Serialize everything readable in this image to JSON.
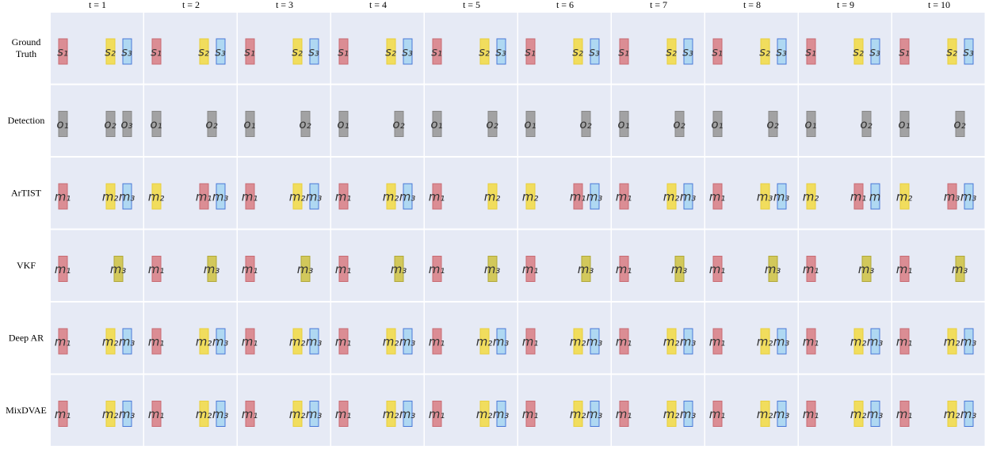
{
  "columns": [
    "t = 1",
    "t = 2",
    "t = 3",
    "t = 4",
    "t = 5",
    "t = 6",
    "t = 7",
    "t = 8",
    "t = 9",
    "t = 10"
  ],
  "palette": {
    "red": "#d9838a",
    "yellow": "#f2dc4c",
    "blue": "#a8d6f2",
    "gray": "#9a9a9a",
    "olive": "#cfc44a"
  },
  "rows": [
    {
      "label": [
        "Ground",
        "Truth"
      ],
      "cells": [
        [
          {
            "label": "s₁",
            "color": "red"
          },
          {
            "label": "s₂",
            "color": "yellow"
          },
          {
            "label": "s₃",
            "color": "blue"
          }
        ],
        [
          {
            "label": "s₁",
            "color": "red"
          },
          {
            "label": "s₂",
            "color": "yellow"
          },
          {
            "label": "s₃",
            "color": "blue"
          }
        ],
        [
          {
            "label": "s₁",
            "color": "red"
          },
          {
            "label": "s₂",
            "color": "yellow"
          },
          {
            "label": "s₃",
            "color": "blue"
          }
        ],
        [
          {
            "label": "s₁",
            "color": "red"
          },
          {
            "label": "s₂",
            "color": "yellow"
          },
          {
            "label": "s₃",
            "color": "blue"
          }
        ],
        [
          {
            "label": "s₁",
            "color": "red"
          },
          {
            "label": "s₂",
            "color": "yellow"
          },
          {
            "label": "s₃",
            "color": "blue"
          }
        ],
        [
          {
            "label": "s₁",
            "color": "red"
          },
          {
            "label": "s₂",
            "color": "yellow"
          },
          {
            "label": "s₃",
            "color": "blue"
          }
        ],
        [
          {
            "label": "s₁",
            "color": "red"
          },
          {
            "label": "s₂",
            "color": "yellow"
          },
          {
            "label": "s₃",
            "color": "blue"
          }
        ],
        [
          {
            "label": "s₁",
            "color": "red"
          },
          {
            "label": "s₂",
            "color": "yellow"
          },
          {
            "label": "s₃",
            "color": "blue"
          }
        ],
        [
          {
            "label": "s₁",
            "color": "red"
          },
          {
            "label": "s₂",
            "color": "yellow"
          },
          {
            "label": "s₃",
            "color": "blue"
          }
        ],
        [
          {
            "label": "s₁",
            "color": "red"
          },
          {
            "label": "s₂",
            "color": "yellow"
          },
          {
            "label": "s₃",
            "color": "blue"
          }
        ]
      ]
    },
    {
      "label": [
        "Detection"
      ],
      "cells": [
        [
          {
            "label": "o₁",
            "color": "gray"
          },
          {
            "label": "o₂",
            "color": "gray"
          },
          {
            "label": "o₃",
            "color": "gray"
          }
        ],
        [
          {
            "label": "o₁",
            "color": "gray"
          },
          {
            "label": "o₂",
            "color": "gray"
          }
        ],
        [
          {
            "label": "o₁",
            "color": "gray"
          },
          {
            "label": "o₂",
            "color": "gray"
          }
        ],
        [
          {
            "label": "o₁",
            "color": "gray"
          },
          {
            "label": "o₂",
            "color": "gray"
          }
        ],
        [
          {
            "label": "o₁",
            "color": "gray"
          },
          {
            "label": "o₂",
            "color": "gray"
          }
        ],
        [
          {
            "label": "o₁",
            "color": "gray"
          },
          {
            "label": "o₂",
            "color": "gray"
          }
        ],
        [
          {
            "label": "o₁",
            "color": "gray"
          },
          {
            "label": "o₂",
            "color": "gray"
          }
        ],
        [
          {
            "label": "o₁",
            "color": "gray"
          },
          {
            "label": "o₂",
            "color": "gray"
          }
        ],
        [
          {
            "label": "o₁",
            "color": "gray"
          },
          {
            "label": "o₂",
            "color": "gray"
          }
        ],
        [
          {
            "label": "o₁",
            "color": "gray"
          },
          {
            "label": "o₂",
            "color": "gray"
          }
        ]
      ]
    },
    {
      "label": [
        "ArTIST"
      ],
      "cells": [
        [
          {
            "label": "m₁",
            "color": "red"
          },
          {
            "label": "m₂",
            "color": "yellow"
          },
          {
            "label": "m₃",
            "color": "blue"
          }
        ],
        [
          {
            "label": "m₂",
            "color": "yellow"
          },
          {
            "label": "m₁",
            "color": "red"
          },
          {
            "label": "m₃",
            "color": "blue"
          }
        ],
        [
          {
            "label": "m₁",
            "color": "red"
          },
          {
            "label": "m₂",
            "color": "yellow"
          },
          {
            "label": "m₃",
            "color": "blue"
          }
        ],
        [
          {
            "label": "m₁",
            "color": "red"
          },
          {
            "label": "m₂",
            "color": "yellow"
          },
          {
            "label": "m₃",
            "color": "blue"
          }
        ],
        [
          {
            "label": "m₁",
            "color": "red"
          },
          {
            "label": "m₂",
            "color": "yellow"
          }
        ],
        [
          {
            "label": "m₂",
            "color": "yellow"
          },
          {
            "label": "m₁",
            "color": "red"
          },
          {
            "label": "m₃",
            "color": "blue"
          }
        ],
        [
          {
            "label": "m₁",
            "color": "red"
          },
          {
            "label": "m₂",
            "color": "yellow"
          },
          {
            "label": "m₃",
            "color": "blue"
          }
        ],
        [
          {
            "label": "m₁",
            "color": "red"
          },
          {
            "label": "m₃",
            "color": "yellow"
          },
          {
            "label": "m₃",
            "color": "blue"
          }
        ],
        [
          {
            "label": "m₂",
            "color": "yellow"
          },
          {
            "label": "m₁",
            "color": "red"
          },
          {
            "label": "m",
            "color": "blue"
          }
        ],
        [
          {
            "label": "m₂",
            "color": "yellow"
          },
          {
            "label": "m₃",
            "color": "red"
          },
          {
            "label": "m₃",
            "color": "blue"
          }
        ]
      ]
    },
    {
      "label": [
        "VKF"
      ],
      "cells": [
        [
          {
            "label": "m₁",
            "color": "red"
          },
          {
            "label": "m₃",
            "color": "olive"
          }
        ],
        [
          {
            "label": "m₁",
            "color": "red"
          },
          {
            "label": "m₃",
            "color": "olive"
          }
        ],
        [
          {
            "label": "m₁",
            "color": "red"
          },
          {
            "label": "m₃",
            "color": "olive"
          }
        ],
        [
          {
            "label": "m₁",
            "color": "red"
          },
          {
            "label": "m₃",
            "color": "olive"
          }
        ],
        [
          {
            "label": "m₁",
            "color": "red"
          },
          {
            "label": "m₃",
            "color": "olive"
          }
        ],
        [
          {
            "label": "m₁",
            "color": "red"
          },
          {
            "label": "m₃",
            "color": "olive"
          }
        ],
        [
          {
            "label": "m₁",
            "color": "red"
          },
          {
            "label": "m₃",
            "color": "olive"
          }
        ],
        [
          {
            "label": "m₁",
            "color": "red"
          },
          {
            "label": "m₃",
            "color": "olive"
          }
        ],
        [
          {
            "label": "m₁",
            "color": "red"
          },
          {
            "label": "m₃",
            "color": "olive"
          }
        ],
        [
          {
            "label": "m₁",
            "color": "red"
          },
          {
            "label": "m₃",
            "color": "olive"
          }
        ]
      ]
    },
    {
      "label": [
        "Deep AR"
      ],
      "cells": [
        [
          {
            "label": "m₁",
            "color": "red"
          },
          {
            "label": "m₂",
            "color": "yellow"
          },
          {
            "label": "m₃",
            "color": "blue"
          }
        ],
        [
          {
            "label": "m₁",
            "color": "red"
          },
          {
            "label": "m₂",
            "color": "yellow"
          },
          {
            "label": "m₃",
            "color": "blue"
          }
        ],
        [
          {
            "label": "m₁",
            "color": "red"
          },
          {
            "label": "m₂",
            "color": "yellow"
          },
          {
            "label": "m₃",
            "color": "blue"
          }
        ],
        [
          {
            "label": "m₁",
            "color": "red"
          },
          {
            "label": "m₂",
            "color": "yellow"
          },
          {
            "label": "m₃",
            "color": "blue"
          }
        ],
        [
          {
            "label": "m₁",
            "color": "red"
          },
          {
            "label": "m₂",
            "color": "yellow"
          },
          {
            "label": "m₃",
            "color": "blue"
          }
        ],
        [
          {
            "label": "m₁",
            "color": "red"
          },
          {
            "label": "m₂",
            "color": "yellow"
          },
          {
            "label": "m₃",
            "color": "blue"
          }
        ],
        [
          {
            "label": "m₁",
            "color": "red"
          },
          {
            "label": "m₂",
            "color": "yellow"
          },
          {
            "label": "m₃",
            "color": "blue"
          }
        ],
        [
          {
            "label": "m₁",
            "color": "red"
          },
          {
            "label": "m₂",
            "color": "yellow"
          },
          {
            "label": "m₃",
            "color": "blue"
          }
        ],
        [
          {
            "label": "m₁",
            "color": "red"
          },
          {
            "label": "m₂",
            "color": "yellow"
          },
          {
            "label": "m₃",
            "color": "blue"
          }
        ],
        [
          {
            "label": "m₁",
            "color": "red"
          },
          {
            "label": "m₂",
            "color": "yellow"
          },
          {
            "label": "m₃",
            "color": "blue"
          }
        ]
      ]
    },
    {
      "label": [
        "MixDVAE"
      ],
      "cells": [
        [
          {
            "label": "m₁",
            "color": "red"
          },
          {
            "label": "m₂",
            "color": "yellow"
          },
          {
            "label": "m₃",
            "color": "blue"
          }
        ],
        [
          {
            "label": "m₁",
            "color": "red"
          },
          {
            "label": "m₂",
            "color": "yellow"
          },
          {
            "label": "m₃",
            "color": "blue"
          }
        ],
        [
          {
            "label": "m₁",
            "color": "red"
          },
          {
            "label": "m₂",
            "color": "yellow"
          },
          {
            "label": "m₃",
            "color": "blue"
          }
        ],
        [
          {
            "label": "m₁",
            "color": "red"
          },
          {
            "label": "m₂",
            "color": "yellow"
          },
          {
            "label": "m₃",
            "color": "blue"
          }
        ],
        [
          {
            "label": "m₁",
            "color": "red"
          },
          {
            "label": "m₂",
            "color": "yellow"
          },
          {
            "label": "m₃",
            "color": "blue"
          }
        ],
        [
          {
            "label": "m₁",
            "color": "red"
          },
          {
            "label": "m₂",
            "color": "yellow"
          },
          {
            "label": "m₃",
            "color": "blue"
          }
        ],
        [
          {
            "label": "m₁",
            "color": "red"
          },
          {
            "label": "m₂",
            "color": "yellow"
          },
          {
            "label": "m₃",
            "color": "blue"
          }
        ],
        [
          {
            "label": "m₁",
            "color": "red"
          },
          {
            "label": "m₂",
            "color": "yellow"
          },
          {
            "label": "m₃",
            "color": "blue"
          }
        ],
        [
          {
            "label": "m₁",
            "color": "red"
          },
          {
            "label": "m₂",
            "color": "yellow"
          },
          {
            "label": "m₃",
            "color": "blue"
          }
        ],
        [
          {
            "label": "m₁",
            "color": "red"
          },
          {
            "label": "m₂",
            "color": "yellow"
          },
          {
            "label": "m₃",
            "color": "blue"
          }
        ]
      ]
    }
  ]
}
